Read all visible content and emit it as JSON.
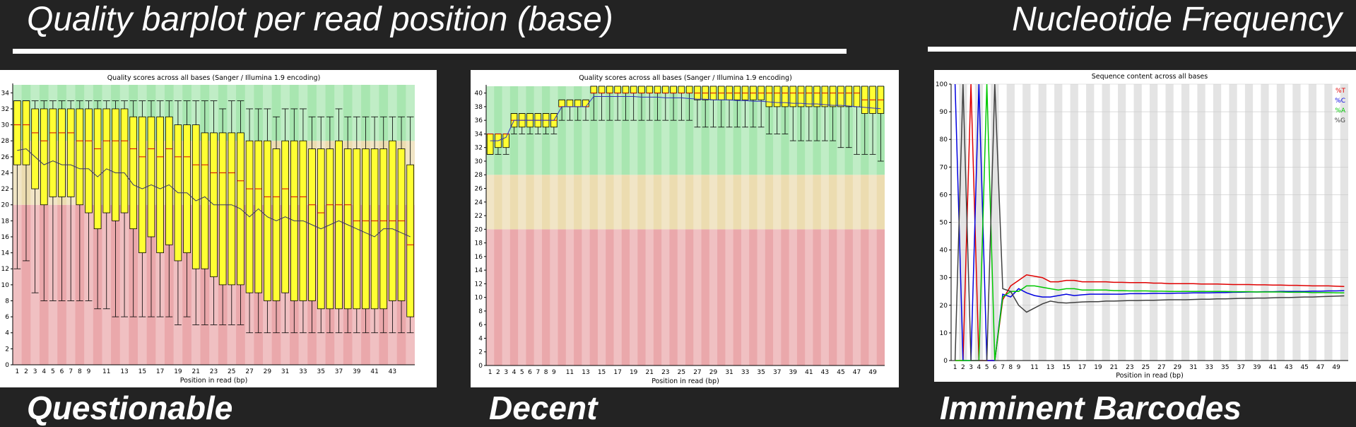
{
  "headings": {
    "left": "Quality barplot per read position (base)",
    "right": "Nucleotide Frequency"
  },
  "captions": [
    "Questionable",
    "Decent",
    "Imminent Barcodes"
  ],
  "colors": {
    "background": "#232323",
    "good_zone": "#a8e6b0",
    "ok_zone": "#ecdcb0",
    "bad_zone": "#eaa8ab",
    "box_fill": "#ffff33",
    "median": "#d10000",
    "mean_line": "#3030c0",
    "T": "#e00000",
    "C": "#0000e0",
    "A": "#00c800",
    "G": "#404040"
  },
  "chart_data": [
    {
      "type": "box",
      "title": "Quality scores across all bases (Sanger / Illumina 1.9 encoding)",
      "xlabel": "Position in read (bp)",
      "ylabel": "",
      "ylim": [
        0,
        35
      ],
      "yticks": [
        0,
        2,
        4,
        6,
        8,
        10,
        12,
        14,
        16,
        18,
        20,
        22,
        24,
        26,
        28,
        30,
        32,
        34
      ],
      "zones": {
        "bad": [
          0,
          20
        ],
        "ok": [
          20,
          28
        ],
        "good": [
          28,
          35
        ]
      },
      "x_tick_labels": [
        "1",
        "2",
        "3",
        "4",
        "5",
        "6",
        "7",
        "8",
        "9",
        "11",
        "13",
        "15",
        "17",
        "19",
        "21",
        "23",
        "25",
        "27",
        "29",
        "31",
        "33",
        "35",
        "37",
        "39",
        "41",
        "43"
      ],
      "positions": [
        1,
        2,
        3,
        4,
        5,
        6,
        7,
        8,
        9,
        10,
        11,
        12,
        13,
        14,
        15,
        16,
        17,
        18,
        19,
        20,
        21,
        22,
        23,
        24,
        25,
        26,
        27,
        28,
        29,
        30,
        31,
        32,
        33,
        34,
        35,
        36,
        37,
        38,
        39,
        40,
        41,
        42,
        43,
        44,
        45
      ],
      "q1": [
        25,
        25,
        22,
        20,
        21,
        21,
        21,
        20,
        19,
        17,
        19,
        18,
        19,
        17,
        14,
        16,
        14,
        15,
        13,
        14,
        12,
        12,
        11,
        10,
        10,
        10,
        9,
        9,
        8,
        8,
        9,
        8,
        8,
        8,
        7,
        7,
        7,
        7,
        7,
        7,
        7,
        7,
        8,
        8,
        6
      ],
      "median": [
        30,
        30,
        29,
        28,
        29,
        29,
        29,
        28,
        28,
        27,
        28,
        28,
        28,
        27,
        26,
        27,
        26,
        27,
        26,
        26,
        25,
        25,
        24,
        24,
        24,
        23,
        22,
        22,
        21,
        21,
        22,
        21,
        21,
        20,
        19,
        20,
        20,
        20,
        18,
        18,
        18,
        18,
        18,
        18,
        15
      ],
      "q3": [
        33,
        33,
        32,
        32,
        32,
        32,
        32,
        32,
        32,
        32,
        32,
        32,
        32,
        31,
        31,
        31,
        31,
        31,
        30,
        30,
        30,
        29,
        29,
        29,
        29,
        29,
        28,
        28,
        28,
        27,
        28,
        28,
        28,
        27,
        27,
        27,
        28,
        27,
        27,
        27,
        27,
        27,
        28,
        27,
        25
      ],
      "lower_whisker": [
        12,
        13,
        9,
        8,
        8,
        8,
        8,
        8,
        8,
        7,
        7,
        6,
        6,
        6,
        6,
        6,
        6,
        6,
        5,
        6,
        5,
        5,
        5,
        5,
        5,
        5,
        4,
        4,
        4,
        4,
        4,
        4,
        4,
        4,
        4,
        4,
        4,
        4,
        4,
        4,
        4,
        4,
        4,
        4,
        4
      ],
      "upper_whisker": [
        33,
        33,
        33,
        33,
        33,
        33,
        33,
        33,
        33,
        33,
        33,
        33,
        33,
        33,
        33,
        33,
        33,
        33,
        33,
        33,
        33,
        33,
        33,
        32,
        33,
        33,
        32,
        32,
        32,
        31,
        32,
        32,
        32,
        31,
        31,
        31,
        32,
        31,
        31,
        31,
        31,
        31,
        31,
        31,
        31
      ],
      "mean": [
        26.8,
        27,
        26,
        25,
        25.5,
        25,
        25,
        24.5,
        24.5,
        23.5,
        24.5,
        24,
        24,
        22.5,
        22,
        22.5,
        22,
        22.5,
        21.5,
        21.5,
        20.5,
        21,
        20,
        20,
        20,
        19.5,
        18.5,
        19.5,
        18.5,
        18,
        18.5,
        18,
        18,
        17.5,
        17,
        17.5,
        18,
        17.5,
        17,
        16.5,
        16,
        17,
        17,
        16.5,
        16
      ]
    },
    {
      "type": "box",
      "title": "Quality scores across all bases (Sanger / Illumina 1.9 encoding)",
      "xlabel": "Position in read (bp)",
      "ylabel": "",
      "ylim": [
        0,
        41
      ],
      "yticks": [
        0,
        2,
        4,
        6,
        8,
        10,
        12,
        14,
        16,
        18,
        20,
        22,
        24,
        26,
        28,
        30,
        32,
        34,
        36,
        38,
        40
      ],
      "zones": {
        "bad": [
          0,
          20
        ],
        "ok": [
          20,
          28
        ],
        "good": [
          28,
          41
        ]
      },
      "x_tick_labels": [
        "1",
        "2",
        "3",
        "4",
        "5",
        "6",
        "7",
        "8",
        "9",
        "11",
        "13",
        "15",
        "17",
        "19",
        "21",
        "23",
        "25",
        "27",
        "29",
        "31",
        "33",
        "35",
        "37",
        "39",
        "41",
        "43",
        "45",
        "47",
        "49"
      ],
      "positions": [
        1,
        2,
        3,
        4,
        5,
        6,
        7,
        8,
        9,
        10,
        11,
        12,
        13,
        14,
        15,
        16,
        17,
        18,
        19,
        20,
        21,
        22,
        23,
        24,
        25,
        26,
        27,
        28,
        29,
        30,
        31,
        32,
        33,
        34,
        35,
        36,
        37,
        38,
        39,
        40,
        41,
        42,
        43,
        44,
        45,
        46,
        47,
        48,
        49,
        50
      ],
      "q1": [
        31,
        32,
        32,
        35,
        35,
        35,
        35,
        35,
        35,
        38,
        38,
        38,
        38,
        40,
        40,
        40,
        40,
        40,
        40,
        40,
        40,
        40,
        40,
        40,
        40,
        40,
        39,
        39,
        39,
        39,
        39,
        39,
        39,
        39,
        39,
        38,
        38,
        38,
        38,
        38,
        38,
        38,
        38,
        38,
        38,
        38,
        38,
        37,
        37,
        37
      ],
      "median": [
        34,
        34,
        34,
        36,
        36,
        36,
        36,
        36,
        36,
        38,
        38,
        38,
        38,
        40,
        40,
        40,
        40,
        40,
        40,
        40,
        40,
        40,
        40,
        40,
        40,
        40,
        40,
        40,
        40,
        40,
        40,
        40,
        40,
        40,
        40,
        40,
        40,
        40,
        40,
        40,
        40,
        40,
        40,
        40,
        40,
        40,
        40,
        39,
        39,
        39
      ],
      "q3": [
        34,
        34,
        34,
        37,
        37,
        37,
        37,
        37,
        37,
        39,
        39,
        39,
        39,
        41,
        41,
        41,
        41,
        41,
        41,
        41,
        41,
        41,
        41,
        41,
        41,
        41,
        41,
        41,
        41,
        41,
        41,
        41,
        41,
        41,
        41,
        41,
        41,
        41,
        41,
        41,
        41,
        41,
        41,
        41,
        41,
        41,
        41,
        41,
        41,
        41
      ],
      "lower_whisker": [
        31,
        31,
        31,
        34,
        34,
        34,
        34,
        34,
        34,
        36,
        36,
        36,
        36,
        36,
        36,
        36,
        36,
        36,
        36,
        36,
        36,
        36,
        36,
        36,
        36,
        36,
        35,
        35,
        35,
        35,
        35,
        35,
        35,
        35,
        35,
        34,
        34,
        34,
        33,
        33,
        33,
        33,
        33,
        33,
        32,
        32,
        31,
        31,
        31,
        30
      ],
      "upper_whisker": [
        34,
        34,
        34,
        37,
        37,
        37,
        37,
        37,
        37,
        39,
        39,
        39,
        39,
        41,
        41,
        41,
        41,
        41,
        41,
        41,
        41,
        41,
        41,
        41,
        41,
        41,
        41,
        41,
        41,
        41,
        41,
        41,
        41,
        41,
        41,
        41,
        41,
        41,
        41,
        41,
        41,
        41,
        41,
        41,
        41,
        41,
        41,
        41,
        41,
        41
      ],
      "mean": [
        33,
        33,
        33.5,
        36,
        36,
        36,
        36,
        36,
        36,
        38,
        38,
        38,
        38,
        39.5,
        39.5,
        39.5,
        39.5,
        39.5,
        39.5,
        39.4,
        39.4,
        39.4,
        39.3,
        39.3,
        39.3,
        39.2,
        39.1,
        39.1,
        39,
        39,
        39,
        38.9,
        38.9,
        38.8,
        38.8,
        38.7,
        38.6,
        38.6,
        38.5,
        38.5,
        38.4,
        38.4,
        38.3,
        38.2,
        38.2,
        38.1,
        38,
        37.9,
        37.8,
        37.7
      ]
    },
    {
      "type": "line",
      "title": "Sequence content across all bases",
      "xlabel": "Position in read (bp)",
      "ylabel": "",
      "ylim": [
        0,
        100
      ],
      "yticks": [
        0,
        10,
        20,
        30,
        40,
        50,
        60,
        70,
        80,
        90,
        100
      ],
      "x_tick_labels": [
        "1",
        "2",
        "3",
        "4",
        "5",
        "6",
        "7",
        "8",
        "9",
        "11",
        "13",
        "15",
        "17",
        "19",
        "21",
        "23",
        "25",
        "27",
        "29",
        "31",
        "33",
        "35",
        "37",
        "39",
        "41",
        "43",
        "45",
        "47",
        "49"
      ],
      "legend_position": "top-right",
      "x": [
        1,
        2,
        3,
        4,
        5,
        6,
        7,
        8,
        9,
        10,
        11,
        12,
        13,
        14,
        15,
        16,
        17,
        18,
        19,
        20,
        21,
        22,
        23,
        24,
        25,
        26,
        27,
        28,
        29,
        30,
        31,
        32,
        33,
        34,
        35,
        36,
        37,
        38,
        39,
        40,
        41,
        42,
        43,
        44,
        45,
        46,
        47,
        48,
        49,
        50
      ],
      "series": [
        {
          "name": "%T",
          "color": "#e00000",
          "values": [
            0,
            0,
            100,
            0,
            0,
            0,
            22,
            27,
            29,
            31,
            30.5,
            30,
            28.5,
            28.5,
            29,
            29,
            28.5,
            28.5,
            28.5,
            28.5,
            28.3,
            28.3,
            28.2,
            28.2,
            28.2,
            28,
            28,
            27.8,
            27.8,
            27.8,
            27.8,
            27.7,
            27.7,
            27.7,
            27.6,
            27.5,
            27.5,
            27.5,
            27.4,
            27.4,
            27.3,
            27.3,
            27.2,
            27.2,
            27.1,
            27,
            27,
            27,
            26.9,
            26.8
          ]
        },
        {
          "name": "%C",
          "color": "#0000e0",
          "values": [
            100,
            0,
            0,
            100,
            0,
            0,
            24,
            23,
            26,
            24.5,
            23.5,
            23,
            23,
            23.5,
            24,
            23.5,
            23.8,
            24,
            24,
            24,
            24,
            24,
            24.2,
            24.2,
            24.2,
            24.3,
            24.3,
            24.3,
            24.4,
            24.4,
            24.5,
            24.5,
            24.5,
            24.6,
            24.6,
            24.7,
            24.7,
            24.8,
            24.8,
            24.9,
            24.9,
            25,
            25,
            25,
            25,
            25.1,
            25.1,
            25.2,
            25.2,
            25.3
          ]
        },
        {
          "name": "%A",
          "color": "#00c800",
          "values": [
            0,
            0,
            0,
            0,
            100,
            0,
            23,
            25,
            25,
            27,
            27,
            26.5,
            26,
            25.5,
            26,
            26,
            25.5,
            25.5,
            25.5,
            25.5,
            25.3,
            25.3,
            25.2,
            25.2,
            25.2,
            25.1,
            25.1,
            25,
            25,
            25,
            25,
            25,
            25,
            25,
            25,
            24.9,
            24.9,
            24.9,
            24.8,
            24.8,
            24.8,
            24.8,
            24.7,
            24.7,
            24.7,
            24.6,
            24.6,
            24.6,
            24.5,
            24.5
          ]
        },
        {
          "name": "%G",
          "color": "#404040",
          "values": [
            0,
            100,
            0,
            0,
            0,
            100,
            26,
            25,
            20,
            17.5,
            19,
            20.5,
            21.5,
            21,
            20.8,
            21,
            21.2,
            21.3,
            21.3,
            21.5,
            21.5,
            21.6,
            21.7,
            21.7,
            21.8,
            21.8,
            21.9,
            22,
            22,
            22,
            22.1,
            22.2,
            22.2,
            22.3,
            22.3,
            22.4,
            22.5,
            22.5,
            22.6,
            22.6,
            22.7,
            22.8,
            22.8,
            22.9,
            23,
            23,
            23.1,
            23.2,
            23.3,
            23.4
          ]
        }
      ]
    }
  ]
}
